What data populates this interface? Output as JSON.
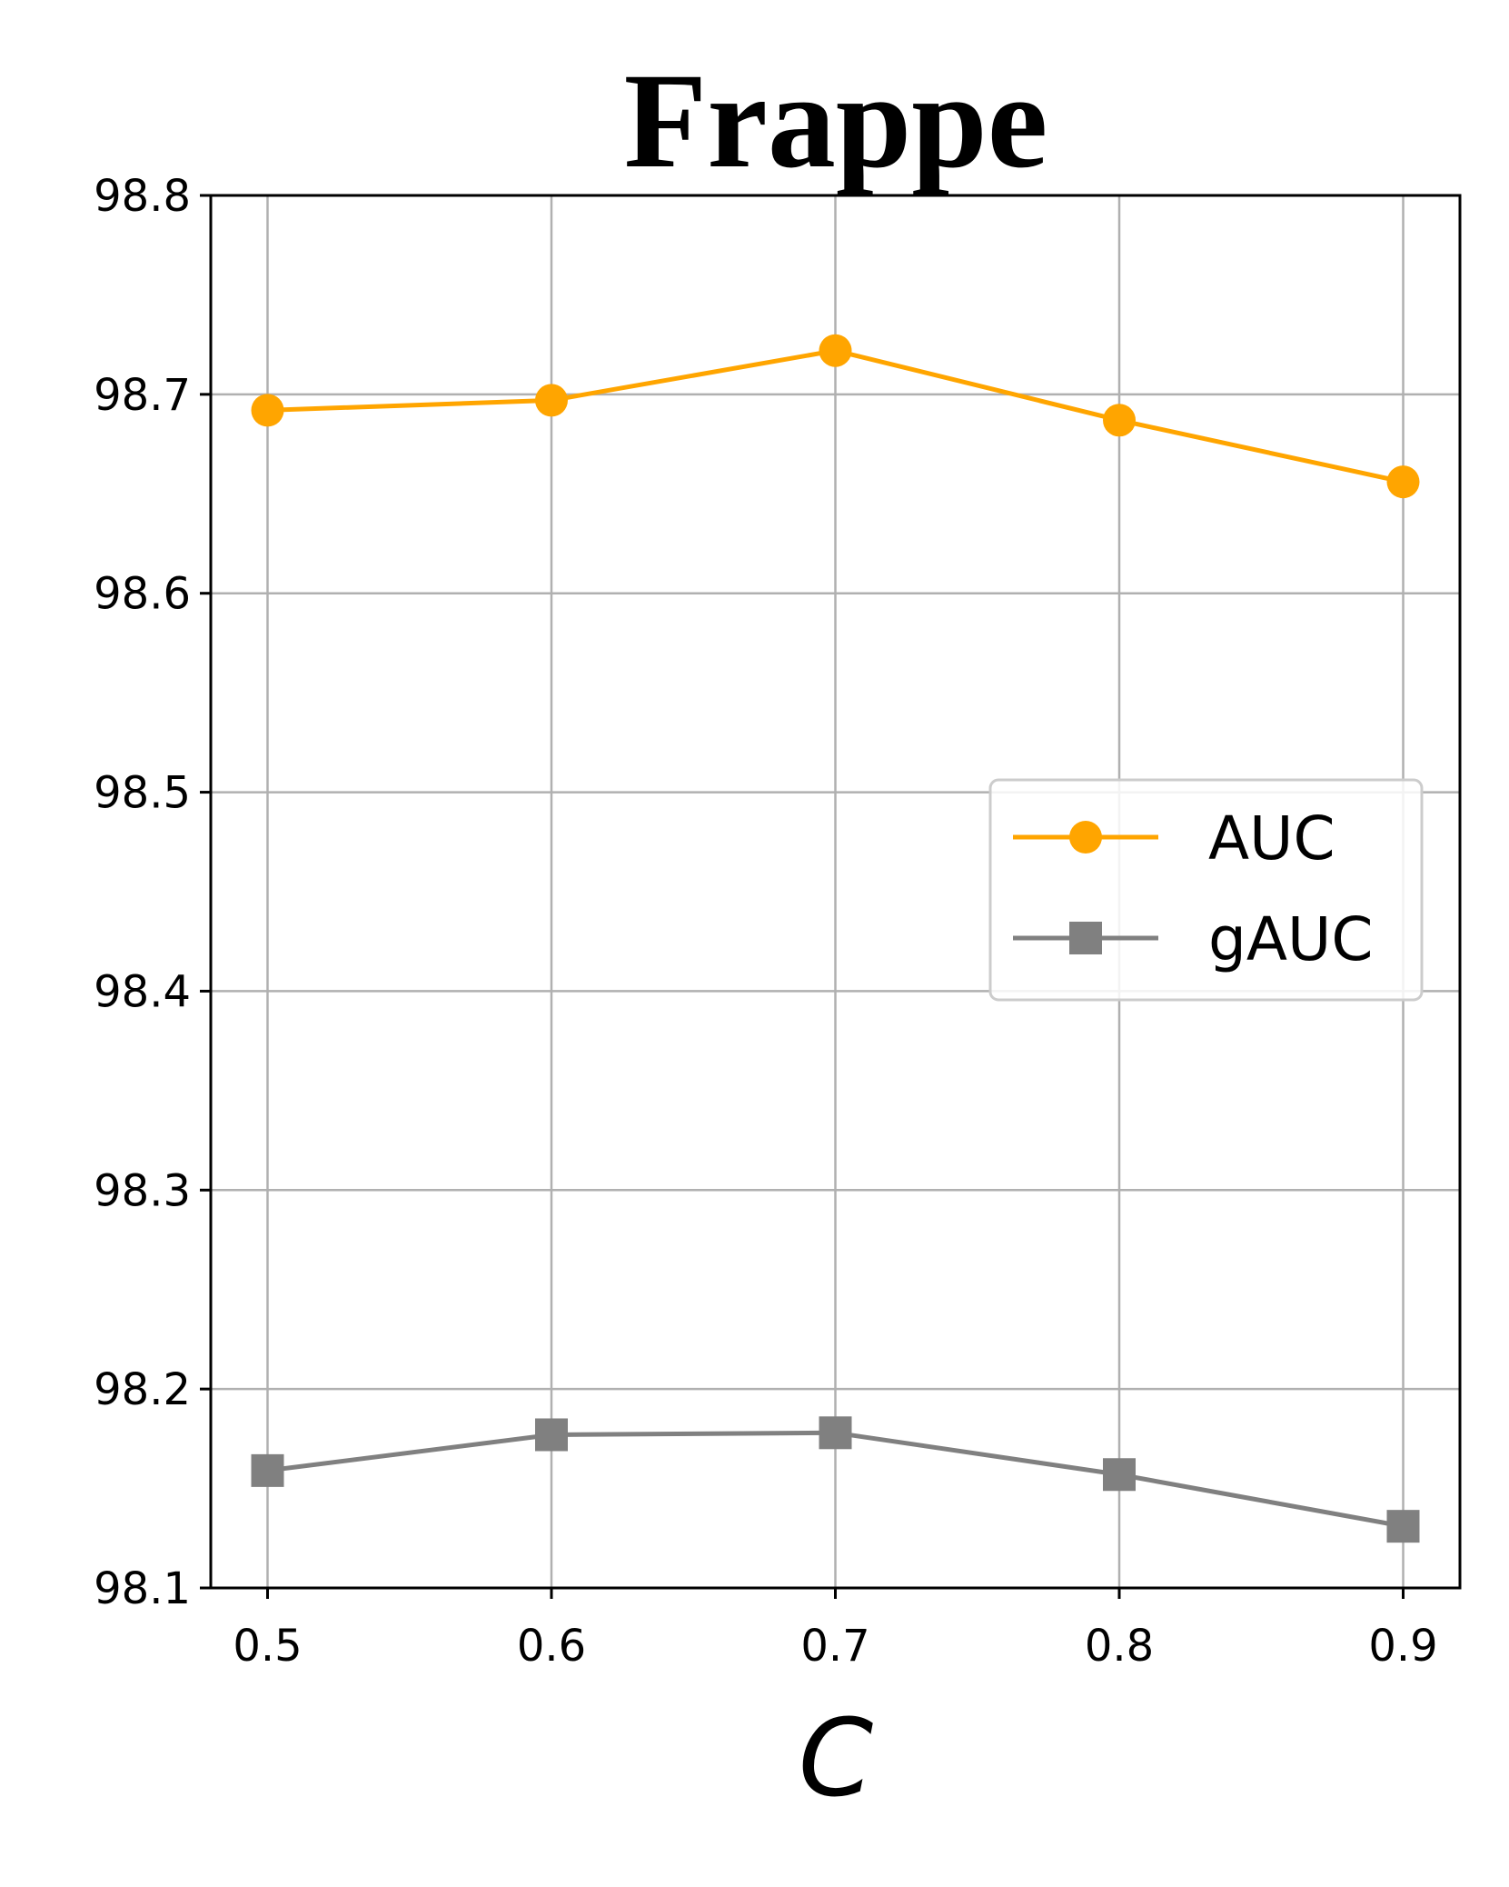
{
  "chart_data": {
    "type": "line",
    "title": "Frappe",
    "xlabel": "C",
    "ylabel": "",
    "x": [
      0.5,
      0.6,
      0.7,
      0.8,
      0.9
    ],
    "x_tick_labels": [
      "0.5",
      "0.6",
      "0.7",
      "0.8",
      "0.9"
    ],
    "y_tick_labels": [
      "98.1",
      "98.2",
      "98.3",
      "98.4",
      "98.5",
      "98.6",
      "98.7",
      "98.8"
    ],
    "xlim": [
      0.48,
      0.92
    ],
    "ylim": [
      98.1,
      98.8
    ],
    "grid": true,
    "legend_position": "center-right",
    "series": [
      {
        "name": "AUC",
        "values": [
          98.692,
          98.697,
          98.722,
          98.687,
          98.656
        ],
        "color": "#FFA500",
        "marker": "circle"
      },
      {
        "name": "gAUC",
        "values": [
          98.159,
          98.177,
          98.178,
          98.157,
          98.131
        ],
        "color": "#808080",
        "marker": "square"
      }
    ]
  }
}
